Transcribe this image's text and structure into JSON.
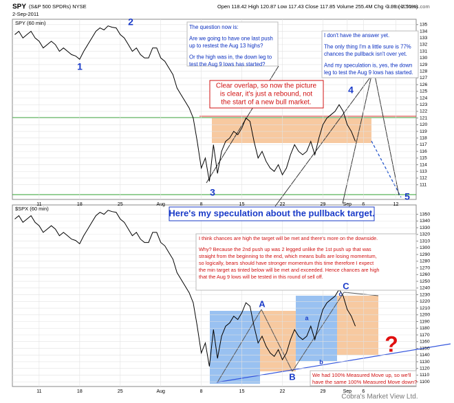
{
  "chart_data": [
    {
      "type": "line",
      "title": "SPY",
      "subtitle": "(S&P 500 SPDRs) NYSE",
      "date": "2-Sep-2011",
      "quote": "Open 118.42 High 120.87 Low 117.43 Close 117.85 Volume 255.4M Chg -3.09 (-2.55%)",
      "credit": "© StockCharts.com",
      "grid": true,
      "x": [
        -3,
        -2.5,
        -2,
        -1.5,
        -1,
        -0.5,
        0,
        0.5,
        1,
        1.5,
        2,
        2.5,
        3,
        3.5,
        4,
        4.5,
        5,
        5.5,
        6,
        6.5,
        7,
        7.5,
        8,
        8.5,
        9,
        9.5,
        10,
        10.5,
        11,
        11.5,
        12,
        12.5,
        13,
        13.5,
        14,
        14.5,
        15,
        15.5,
        16,
        16.5,
        17,
        17.5,
        18,
        18.5,
        19,
        19.5,
        20,
        20.5,
        21,
        21.5,
        22,
        22.5,
        23,
        23.5,
        24,
        24.5,
        25,
        25.5,
        26,
        26.5,
        27,
        27.5,
        28,
        28.5,
        29,
        29.5,
        30,
        30.5,
        31,
        31.5,
        32,
        32.5,
        33,
        33.5,
        34,
        34.5,
        35,
        35.5,
        36,
        36.5,
        37,
        37.5,
        38,
        38.5,
        39
      ],
      "series": [
        {
          "name": "SPY (60 min)",
          "color": "#000000",
          "values": [
            133.5,
            134,
            133,
            133.5,
            134,
            133,
            132.5,
            131.5,
            132,
            132.5,
            132,
            131,
            131.5,
            131,
            130.5,
            130.3,
            129.8,
            131,
            132,
            133,
            134,
            134.5,
            134.2,
            134.8,
            134.6,
            134.5,
            133.5,
            133,
            132,
            131,
            131.5,
            130.5,
            130,
            130,
            131.5,
            131.5,
            130,
            129.5,
            128.5,
            127.5,
            125.5,
            124.5,
            123.5,
            122.5,
            121,
            117.5,
            113.5,
            115,
            111.5,
            117,
            112.7,
            116,
            117.5,
            118,
            119,
            118.5,
            119.5,
            121,
            120.5,
            117.5,
            115,
            116,
            114.5,
            113.5,
            113,
            114,
            112.5,
            113.5,
            115.5,
            117,
            116,
            115.5,
            116,
            117.5,
            115.5,
            118,
            120,
            121,
            121.5,
            122,
            123,
            122,
            120,
            119,
            117.5
          ]
        }
      ],
      "xlim": [
        -3.3,
        46.5
      ],
      "ylim": [
        108.8,
        135.8
      ],
      "yticks": [
        111,
        112,
        113,
        114,
        115,
        116,
        117,
        118,
        119,
        120,
        121,
        122,
        123,
        124,
        125,
        126,
        127,
        128,
        129,
        130,
        131,
        132,
        133,
        134,
        135
      ],
      "xticks": [
        {
          "value": 0,
          "label": "11"
        },
        {
          "value": 5,
          "label": "18"
        },
        {
          "value": 10,
          "label": "25"
        },
        {
          "value": 15,
          "label": "Aug"
        },
        {
          "value": 20,
          "label": "8"
        },
        {
          "value": 25,
          "label": "15"
        },
        {
          "value": 30,
          "label": "22"
        },
        {
          "value": 35,
          "label": "29"
        },
        {
          "value": 38,
          "label": "Sep"
        },
        {
          "value": 40,
          "label": "6"
        },
        {
          "value": 44,
          "label": "12"
        }
      ],
      "annotations": [
        {
          "text": [
            [
              "The question now is:"
            ],
            [
              "Are we going to have one last push",
              "up to restest the Aug 13 highs?"
            ],
            [
              "Or the high was in, the down leg to",
              "test the Aug 9 lows has started?"
            ]
          ]
        },
        {
          "text": [
            [
              "I don't have the answer yet."
            ],
            [
              "The only thing I'm a little sure is 77%",
              "chances the pullback isn't over yet."
            ],
            [
              "And my speculation is, yes, the down",
              "leg to test the Aug 9 lows has started."
            ]
          ]
        },
        {
          "text": [
            [
              "Clear overlap, so now the picture",
              "is clear, it's just a rebound, not",
              "the start of a new bull market."
            ]
          ]
        },
        {
          "text": [
            [
              "1"
            ]
          ]
        },
        {
          "text": [
            [
              "2"
            ]
          ]
        },
        {
          "text": [
            [
              "3"
            ]
          ]
        },
        {
          "text": [
            [
              "4"
            ]
          ]
        },
        {
          "text": [
            [
              "5"
            ]
          ]
        }
      ]
    },
    {
      "type": "line",
      "footer": "Cobra's Market View Ltd.",
      "grid": true,
      "x": [
        -3,
        -2.5,
        -2,
        -1.5,
        -1,
        -0.5,
        0,
        0.5,
        1,
        1.5,
        2,
        2.5,
        3,
        3.5,
        4,
        4.5,
        5,
        5.5,
        6,
        6.5,
        7,
        7.5,
        8,
        8.5,
        9,
        9.5,
        10,
        10.5,
        11,
        11.5,
        12,
        12.5,
        13,
        13.5,
        14,
        14.5,
        15,
        15.5,
        16,
        16.5,
        17,
        17.5,
        18,
        18.5,
        19,
        19.5,
        20,
        20.5,
        21,
        21.5,
        22,
        22.5,
        23,
        23.5,
        24,
        24.5,
        25,
        25.5,
        26,
        26.5,
        27,
        27.5,
        28,
        28.5,
        29,
        29.5,
        30,
        30.5,
        31,
        31.5,
        32,
        32.5,
        33,
        33.5,
        34,
        34.5,
        35,
        35.5,
        36,
        36.5,
        37,
        37.5,
        38,
        38.5,
        39
      ],
      "series": [
        {
          "name": "$SPX (60 min)",
          "color": "#000000",
          "values": [
            1343,
            1348,
            1338,
            1343,
            1348,
            1338,
            1333,
            1323,
            1328,
            1333,
            1328,
            1318,
            1323,
            1318,
            1313,
            1311,
            1306,
            1318,
            1328,
            1338,
            1348,
            1353,
            1350,
            1356,
            1354,
            1353,
            1343,
            1338,
            1328,
            1318,
            1323,
            1313,
            1308,
            1308,
            1323,
            1323,
            1308,
            1303,
            1293,
            1283,
            1263,
            1253,
            1243,
            1233,
            1218,
            1183,
            1143,
            1158,
            1123,
            1178,
            1135,
            1168,
            1183,
            1188,
            1198,
            1193,
            1203,
            1218,
            1213,
            1183,
            1158,
            1168,
            1153,
            1143,
            1138,
            1148,
            1133,
            1143,
            1163,
            1178,
            1168,
            1163,
            1168,
            1183,
            1163,
            1188,
            1208,
            1218,
            1223,
            1228,
            1238,
            1228,
            1208,
            1198,
            1183
          ]
        }
      ],
      "xlim": [
        -3.3,
        46.5
      ],
      "ylim": [
        1093,
        1364
      ],
      "yticks": [
        1100,
        1110,
        1120,
        1130,
        1140,
        1150,
        1160,
        1170,
        1180,
        1190,
        1200,
        1210,
        1220,
        1230,
        1240,
        1250,
        1260,
        1270,
        1280,
        1290,
        1300,
        1310,
        1320,
        1330,
        1340,
        1350
      ],
      "xticks": [
        {
          "value": 0,
          "label": "11"
        },
        {
          "value": 5,
          "label": "18"
        },
        {
          "value": 10,
          "label": "25"
        },
        {
          "value": 15,
          "label": "Aug"
        },
        {
          "value": 20,
          "label": "8"
        },
        {
          "value": 25,
          "label": "15"
        },
        {
          "value": 30,
          "label": "22"
        },
        {
          "value": 35,
          "label": "29"
        },
        {
          "value": 38,
          "label": "Sep"
        },
        {
          "value": 40,
          "label": "6"
        }
      ],
      "annotations": [
        {
          "text": [
            [
              "Here's my speculation about the pullback target."
            ]
          ]
        },
        {
          "text": [
            [
              "I think chances are high the target will be met and there's more on the downside."
            ],
            [
              "Why? Because the 2nd push up was 2 legged unlike the 1st push up that was",
              "straight from the beginning to the end, which means bulls are losing momentum,",
              "so logically, bears should have stronger momentum this time therefore I expect",
              "the min target as tinted below will be met and exceeded. Hence chances are high",
              "that the Aug 9 lows will be tested in this round of sell off."
            ]
          ]
        },
        {
          "text": [
            [
              "We had 100% Measured Move up, so we'll",
              "have the same 100% Measured Move down?"
            ]
          ]
        },
        {
          "text": [
            [
              "A"
            ]
          ]
        },
        {
          "text": [
            [
              "B"
            ]
          ]
        },
        {
          "text": [
            [
              "C"
            ]
          ]
        },
        {
          "text": [
            [
              "a"
            ]
          ]
        },
        {
          "text": [
            [
              "b"
            ]
          ]
        },
        {
          "text": [
            [
              "c"
            ]
          ]
        },
        {
          "text": [
            [
              "?"
            ]
          ]
        }
      ]
    }
  ]
}
